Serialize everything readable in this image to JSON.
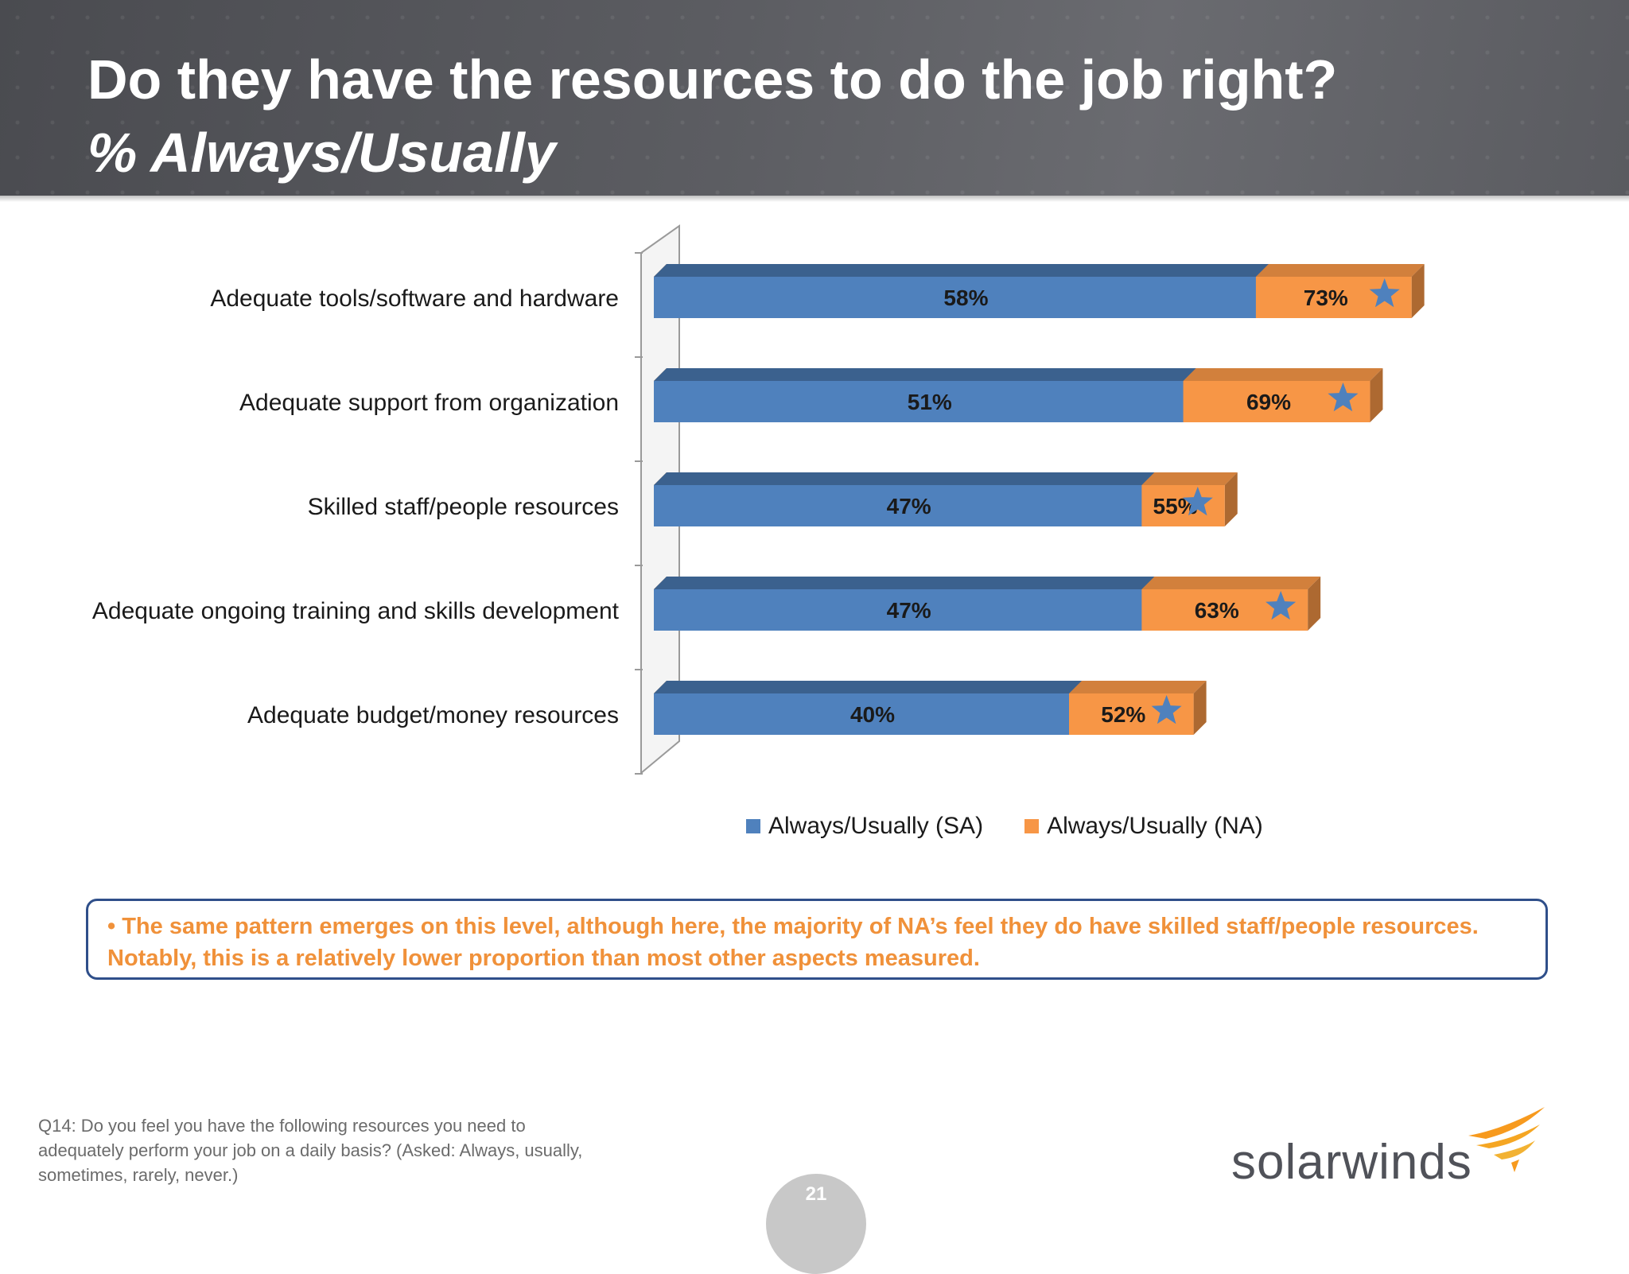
{
  "header": {
    "title": "Do they have the resources to do the job right?",
    "subtitle": "% Always/Usually"
  },
  "chart_data": {
    "type": "bar",
    "orientation": "horizontal",
    "style": "3d-overlapping",
    "categories": [
      "Adequate tools/software and hardware",
      "Adequate support from organization",
      "Skilled staff/people resources",
      "Adequate ongoing training and skills development",
      "Adequate budget/money resources"
    ],
    "series": [
      {
        "name": "Always/Usually (SA)",
        "values": [
          58,
          51,
          47,
          47,
          40
        ],
        "labels": [
          "58%",
          "51%",
          "47%",
          "47%",
          "40%"
        ],
        "color": "#4f81bd"
      },
      {
        "name": "Always/Usually (NA)",
        "values": [
          73,
          69,
          55,
          63,
          52
        ],
        "labels": [
          "73%",
          "69%",
          "55%",
          "63%",
          "52%"
        ],
        "color": "#f79646"
      }
    ],
    "markers": {
      "icon": "star-icon",
      "series": "Always/Usually (NA)",
      "color": "#4f81bd"
    },
    "xlim": [
      0,
      100
    ],
    "legend_position": "bottom",
    "grid": false
  },
  "callout": {
    "bullet": "•",
    "text": "The same pattern emerges on this level, although here,  the majority of NA’s feel they do have skilled staff/people resources. Notably, this is a relatively lower proportion than most other aspects measured."
  },
  "footnote": "Q14: Do you feel you have the following resources you need to adequately perform your job on a daily basis? (Asked: Always, usually, sometimes, rarely, never.)",
  "logo": {
    "text": "solarwinds"
  },
  "page_number": "21"
}
